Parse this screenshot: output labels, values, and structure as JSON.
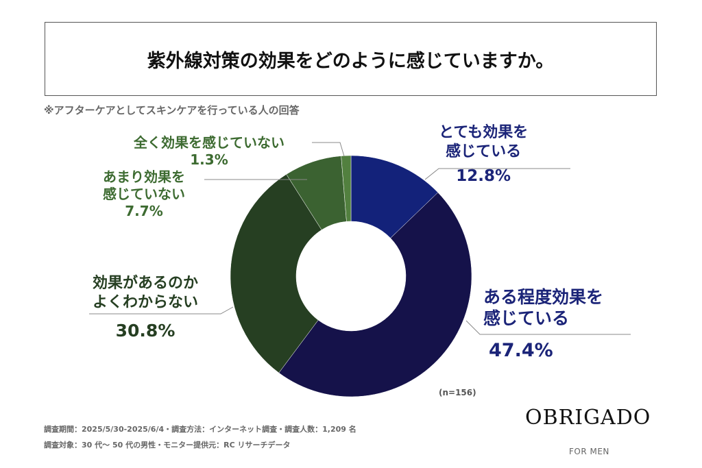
{
  "title": "紫外線対策の効果をどのように感じていますか。",
  "note": "※アフターケアとしてスキンケアを行っている人の回答",
  "chart_data": {
    "type": "pie",
    "donut": true,
    "categories": [
      "とても効果を感じている",
      "ある程度効果を感じている",
      "効果があるのかよくわからない",
      "あまり効果を感じていない",
      "全く効果を感じていない"
    ],
    "values": [
      12.8,
      47.4,
      30.8,
      7.7,
      1.3
    ],
    "value_labels": [
      "12.8%",
      "47.4%",
      "30.8%",
      "7.7%",
      "1.3%"
    ],
    "colors": [
      "#13227a",
      "#15124a",
      "#263f22",
      "#3b6231",
      "#52803f"
    ],
    "sample": "(n=156)"
  },
  "labels": {
    "l0a": "とても効果を",
    "l0b": "感じている",
    "l1a": "ある程度効果を",
    "l1b": "感じている",
    "l2a": "効果があるのか",
    "l2b": "よくわからない",
    "l3a": "あまり効果を",
    "l3b": "感じていない",
    "l4a": "全く効果を感じていない"
  },
  "footer": {
    "line1": "調査期間：2025/5/30-2025/6/4・調査方法：インターネット調査・調査人数：1,209 名",
    "line2": "調査対象：30 代～ 50 代の男性・モニター提供元：RC リサーチデータ"
  },
  "brand": {
    "logo": "OBRIGADO",
    "sub": "FOR MEN"
  }
}
